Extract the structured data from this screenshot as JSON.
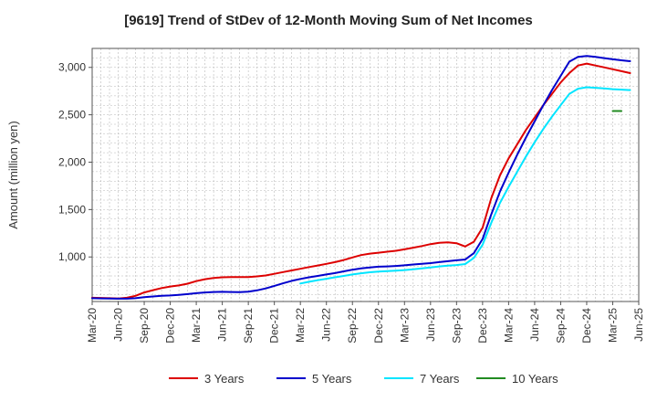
{
  "chart_data": {
    "type": "line",
    "title": "[9619]  Trend of StDev of 12-Month Moving Sum of Net Incomes",
    "ylabel": "Amount (million yen)",
    "xlabel": "",
    "ylim": [
      530,
      3200
    ],
    "yticks": [
      1000,
      1500,
      2000,
      2500,
      3000
    ],
    "ytick_labels": [
      "1,000",
      "1,500",
      "2,000",
      "2,500",
      "3,000"
    ],
    "xticks": [
      "Mar-20",
      "Jun-20",
      "Sep-20",
      "Dec-20",
      "Mar-21",
      "Jun-21",
      "Sep-21",
      "Dec-21",
      "Mar-22",
      "Jun-22",
      "Sep-22",
      "Dec-22",
      "Mar-23",
      "Jun-23",
      "Sep-23",
      "Dec-23",
      "Mar-24",
      "Jun-24",
      "Sep-24",
      "Dec-24",
      "Mar-25",
      "Jun-25"
    ],
    "grid": true,
    "legend_position": "bottom",
    "series": [
      {
        "name": "3 Years",
        "color": "#dd0000",
        "points": [
          [
            "Mar-20",
            570
          ],
          [
            "Apr-20",
            568
          ],
          [
            "May-20",
            565
          ],
          [
            "Jun-20",
            562
          ],
          [
            "Jul-20",
            570
          ],
          [
            "Aug-20",
            590
          ],
          [
            "Sep-20",
            625
          ],
          [
            "Oct-20",
            650
          ],
          [
            "Nov-20",
            672
          ],
          [
            "Dec-20",
            688
          ],
          [
            "Jan-21",
            700
          ],
          [
            "Feb-21",
            718
          ],
          [
            "Mar-21",
            745
          ],
          [
            "Apr-21",
            765
          ],
          [
            "May-21",
            778
          ],
          [
            "Jun-21",
            785
          ],
          [
            "Jul-21",
            788
          ],
          [
            "Aug-21",
            788
          ],
          [
            "Sep-21",
            788
          ],
          [
            "Oct-21",
            795
          ],
          [
            "Nov-21",
            805
          ],
          [
            "Dec-21",
            822
          ],
          [
            "Jan-22",
            840
          ],
          [
            "Feb-22",
            858
          ],
          [
            "Mar-22",
            875
          ],
          [
            "Apr-22",
            893
          ],
          [
            "May-22",
            910
          ],
          [
            "Jun-22",
            927
          ],
          [
            "Jul-22",
            945
          ],
          [
            "Aug-22",
            968
          ],
          [
            "Sep-22",
            995
          ],
          [
            "Oct-22",
            1020
          ],
          [
            "Nov-22",
            1035
          ],
          [
            "Dec-22",
            1045
          ],
          [
            "Jan-23",
            1055
          ],
          [
            "Feb-23",
            1065
          ],
          [
            "Mar-23",
            1080
          ],
          [
            "Apr-23",
            1098
          ],
          [
            "May-23",
            1115
          ],
          [
            "Jun-23",
            1135
          ],
          [
            "Jul-23",
            1150
          ],
          [
            "Aug-23",
            1155
          ],
          [
            "Sep-23",
            1145
          ],
          [
            "Oct-23",
            1110
          ],
          [
            "Nov-23",
            1160
          ],
          [
            "Dec-23",
            1310
          ],
          [
            "Jan-24",
            1620
          ],
          [
            "Feb-24",
            1860
          ],
          [
            "Mar-24",
            2040
          ],
          [
            "Apr-24",
            2190
          ],
          [
            "May-24",
            2340
          ],
          [
            "Jun-24",
            2470
          ],
          [
            "Jul-24",
            2600
          ],
          [
            "Aug-24",
            2720
          ],
          [
            "Sep-24",
            2840
          ],
          [
            "Oct-24",
            2940
          ],
          [
            "Nov-24",
            3020
          ],
          [
            "Dec-24",
            3040
          ],
          [
            "Jan-25",
            3020
          ],
          [
            "Feb-25",
            3000
          ],
          [
            "Mar-25",
            2980
          ],
          [
            "Apr-25",
            2960
          ],
          [
            "May-25",
            2940
          ]
        ]
      },
      {
        "name": "5 Years",
        "color": "#0000cc",
        "points": [
          [
            "Mar-20",
            565
          ],
          [
            "Apr-20",
            563
          ],
          [
            "May-20",
            561
          ],
          [
            "Jun-20",
            560
          ],
          [
            "Jul-20",
            560
          ],
          [
            "Aug-20",
            565
          ],
          [
            "Sep-20",
            575
          ],
          [
            "Oct-20",
            583
          ],
          [
            "Nov-20",
            590
          ],
          [
            "Dec-20",
            594
          ],
          [
            "Jan-21",
            600
          ],
          [
            "Feb-21",
            608
          ],
          [
            "Mar-21",
            618
          ],
          [
            "Apr-21",
            625
          ],
          [
            "May-21",
            630
          ],
          [
            "Jun-21",
            632
          ],
          [
            "Jul-21",
            630
          ],
          [
            "Aug-21",
            628
          ],
          [
            "Sep-21",
            633
          ],
          [
            "Oct-21",
            648
          ],
          [
            "Nov-21",
            668
          ],
          [
            "Dec-21",
            695
          ],
          [
            "Jan-22",
            722
          ],
          [
            "Feb-22",
            748
          ],
          [
            "Mar-22",
            768
          ],
          [
            "Apr-22",
            785
          ],
          [
            "May-22",
            800
          ],
          [
            "Jun-22",
            815
          ],
          [
            "Jul-22",
            830
          ],
          [
            "Aug-22",
            848
          ],
          [
            "Sep-22",
            865
          ],
          [
            "Oct-22",
            880
          ],
          [
            "Nov-22",
            890
          ],
          [
            "Dec-22",
            897
          ],
          [
            "Jan-23",
            900
          ],
          [
            "Feb-23",
            905
          ],
          [
            "Mar-23",
            912
          ],
          [
            "Apr-23",
            920
          ],
          [
            "May-23",
            928
          ],
          [
            "Jun-23",
            935
          ],
          [
            "Jul-23",
            945
          ],
          [
            "Aug-23",
            955
          ],
          [
            "Sep-23",
            965
          ],
          [
            "Oct-23",
            972
          ],
          [
            "Nov-23",
            1040
          ],
          [
            "Dec-23",
            1190
          ],
          [
            "Jan-24",
            1450
          ],
          [
            "Feb-24",
            1690
          ],
          [
            "Mar-24",
            1890
          ],
          [
            "Apr-24",
            2080
          ],
          [
            "May-24",
            2260
          ],
          [
            "Jun-24",
            2430
          ],
          [
            "Jul-24",
            2600
          ],
          [
            "Aug-24",
            2760
          ],
          [
            "Sep-24",
            2910
          ],
          [
            "Oct-24",
            3060
          ],
          [
            "Nov-24",
            3110
          ],
          [
            "Dec-24",
            3120
          ],
          [
            "Jan-25",
            3110
          ],
          [
            "Feb-25",
            3098
          ],
          [
            "Mar-25",
            3085
          ],
          [
            "Apr-25",
            3075
          ],
          [
            "May-25",
            3065
          ]
        ]
      },
      {
        "name": "7 Years",
        "color": "#00e5ff",
        "points": [
          [
            "Mar-22",
            720
          ],
          [
            "Apr-22",
            738
          ],
          [
            "May-22",
            755
          ],
          [
            "Jun-22",
            770
          ],
          [
            "Jul-22",
            785
          ],
          [
            "Aug-22",
            800
          ],
          [
            "Sep-22",
            815
          ],
          [
            "Oct-22",
            828
          ],
          [
            "Nov-22",
            838
          ],
          [
            "Dec-22",
            845
          ],
          [
            "Jan-23",
            850
          ],
          [
            "Feb-23",
            855
          ],
          [
            "Mar-23",
            862
          ],
          [
            "Apr-23",
            870
          ],
          [
            "May-23",
            880
          ],
          [
            "Jun-23",
            890
          ],
          [
            "Jul-23",
            900
          ],
          [
            "Aug-23",
            908
          ],
          [
            "Sep-23",
            915
          ],
          [
            "Oct-23",
            925
          ],
          [
            "Nov-23",
            990
          ],
          [
            "Dec-23",
            1130
          ],
          [
            "Jan-24",
            1360
          ],
          [
            "Feb-24",
            1570
          ],
          [
            "Mar-24",
            1740
          ],
          [
            "Apr-24",
            1900
          ],
          [
            "May-24",
            2060
          ],
          [
            "Jun-24",
            2210
          ],
          [
            "Jul-24",
            2350
          ],
          [
            "Aug-24",
            2480
          ],
          [
            "Sep-24",
            2600
          ],
          [
            "Oct-24",
            2720
          ],
          [
            "Nov-24",
            2775
          ],
          [
            "Dec-24",
            2790
          ],
          [
            "Jan-25",
            2785
          ],
          [
            "Feb-25",
            2778
          ],
          [
            "Mar-25",
            2770
          ],
          [
            "Apr-25",
            2765
          ],
          [
            "May-25",
            2760
          ]
        ]
      },
      {
        "name": "10 Years",
        "color": "#228b22",
        "points": [
          [
            "Mar-25",
            2540
          ],
          [
            "Apr-25",
            2540
          ]
        ]
      }
    ]
  }
}
